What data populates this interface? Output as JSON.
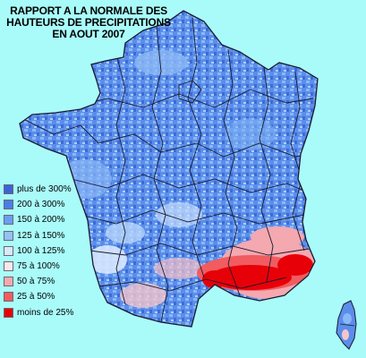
{
  "title": {
    "line1": "RAPPORT A LA NORMALE DES",
    "line2": "HAUTEURS DE PRECIPITATIONS",
    "line3": "EN AOUT 2007"
  },
  "legend": [
    {
      "label": "plus de 300%",
      "color": "#3a64d8"
    },
    {
      "label": "200 à 300%",
      "color": "#4a7ee6"
    },
    {
      "label": "150 à 200%",
      "color": "#6b9ef2"
    },
    {
      "label": "125 à 150%",
      "color": "#95c0f8"
    },
    {
      "label": "100 à 125%",
      "color": "#d8e8ff"
    },
    {
      "label": "75 à 100%",
      "color": "#ffe4ec"
    },
    {
      "label": "50 à 75%",
      "color": "#f4a8b0"
    },
    {
      "label": "25 à 50%",
      "color": "#f05c60"
    },
    {
      "label": "moins de 25%",
      "color": "#e80008"
    }
  ],
  "colors": {
    "sea": "#a9fbfa",
    "border": "#1a1a2e"
  }
}
